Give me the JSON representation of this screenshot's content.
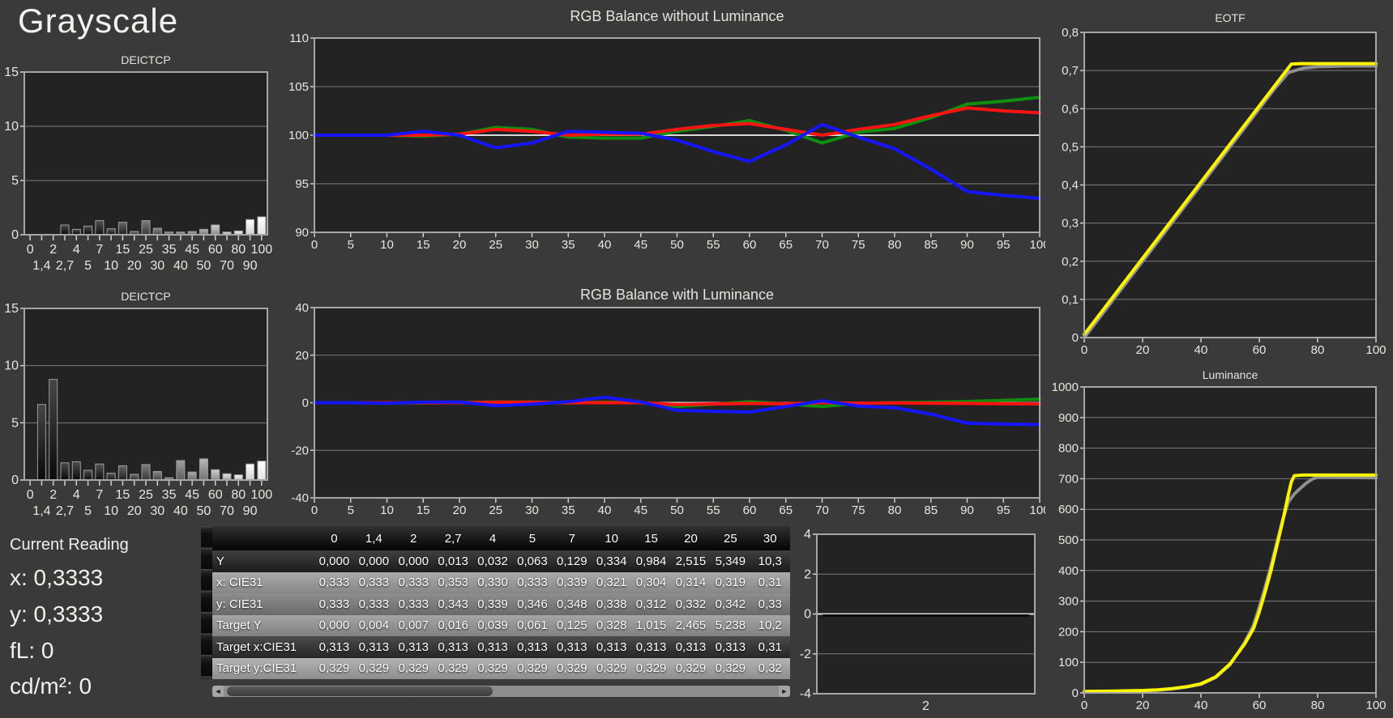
{
  "page": {
    "title": "Grayscale"
  },
  "current_reading": {
    "title": "Current Reading",
    "x": "x: 0,3333",
    "y": "y: 0,3333",
    "fl": "fL: 0",
    "cd": "cd/m²: 0"
  },
  "icons": {
    "scroll_left": "◄",
    "scroll_right": "►"
  },
  "colors": {
    "red": "#fe1212",
    "green": "#0e8f0e",
    "blue": "#1515ff",
    "yellow": "#fdf400",
    "reference_gray": "#8f8f8f",
    "series_black": "#0a0a0a",
    "plot_bg": "#232323",
    "grid": "#7d7d7d",
    "grid_bright": "#d9d9d9",
    "border": "#a6a6a6"
  },
  "table": {
    "col_headers": [
      "0",
      "1,4",
      "2",
      "2,7",
      "4",
      "5",
      "7",
      "10",
      "15",
      "20",
      "25",
      "30"
    ],
    "rows": [
      {
        "label": "Y",
        "values": [
          "0,000",
          "0,000",
          "0,000",
          "0,013",
          "0,032",
          "0,063",
          "0,129",
          "0,334",
          "0,984",
          "2,515",
          "5,349",
          "10,3"
        ]
      },
      {
        "label": "x: CIE31",
        "values": [
          "0,333",
          "0,333",
          "0,333",
          "0,353",
          "0,330",
          "0,333",
          "0,339",
          "0,321",
          "0,304",
          "0,314",
          "0,319",
          "0,31"
        ]
      },
      {
        "label": "y: CIE31",
        "values": [
          "0,333",
          "0,333",
          "0,333",
          "0,343",
          "0,339",
          "0,346",
          "0,348",
          "0,338",
          "0,312",
          "0,332",
          "0,342",
          "0,33"
        ]
      },
      {
        "label": "Target Y",
        "values": [
          "0,000",
          "0,004",
          "0,007",
          "0,016",
          "0,039",
          "0,061",
          "0,125",
          "0,328",
          "1,015",
          "2,465",
          "5,238",
          "10,2"
        ]
      },
      {
        "label": "Target x:CIE31",
        "values": [
          "0,313",
          "0,313",
          "0,313",
          "0,313",
          "0,313",
          "0,313",
          "0,313",
          "0,313",
          "0,313",
          "0,313",
          "0,313",
          "0,31"
        ]
      },
      {
        "label": "Target y:CIE31",
        "values": [
          "0,329",
          "0,329",
          "0,329",
          "0,329",
          "0,329",
          "0,329",
          "0,329",
          "0,329",
          "0,329",
          "0,329",
          "0,329",
          "0,32"
        ]
      }
    ]
  },
  "chart_data": {
    "deictcp_top": {
      "type": "bar",
      "title": "DEICTCP",
      "categories": [
        "0",
        "1,4",
        "2",
        "2,7",
        "4",
        "5",
        "7",
        "10",
        "15",
        "20",
        "25",
        "30",
        "35",
        "40",
        "45",
        "50",
        "60",
        "70",
        "80",
        "90",
        "100"
      ],
      "values": [
        0,
        0,
        0,
        0.9,
        0.5,
        0.8,
        1.3,
        0.55,
        1.15,
        0.3,
        1.3,
        0.6,
        0.25,
        0.25,
        0.3,
        0.5,
        0.9,
        0.25,
        0.35,
        1.4,
        1.65
      ],
      "ylim": [
        0,
        15
      ],
      "y_ticks": [
        "0",
        "5",
        "10",
        "15"
      ]
    },
    "deictcp_bottom": {
      "type": "bar",
      "title": "DEICTCP",
      "categories": [
        "0",
        "1,4",
        "2",
        "2,7",
        "4",
        "5",
        "7",
        "10",
        "15",
        "20",
        "25",
        "30",
        "35",
        "40",
        "45",
        "50",
        "60",
        "70",
        "80",
        "90",
        "100"
      ],
      "values": [
        0,
        6.6,
        8.8,
        1.5,
        1.6,
        0.85,
        1.4,
        0.6,
        1.25,
        0.5,
        1.35,
        0.75,
        0.2,
        1.7,
        0.7,
        1.85,
        0.9,
        0.55,
        0.45,
        1.4,
        1.65
      ],
      "ylim": [
        0,
        15
      ],
      "y_ticks": [
        "0",
        "5",
        "10",
        "15"
      ]
    },
    "rgb_without_luminance": {
      "type": "line",
      "title": "RGB Balance without Luminance",
      "xlim": [
        0,
        100
      ],
      "x": [
        0,
        5,
        10,
        15,
        20,
        25,
        30,
        35,
        40,
        45,
        50,
        55,
        60,
        65,
        70,
        75,
        80,
        85,
        90,
        95,
        100
      ],
      "x_ticks": [
        "0",
        "5",
        "10",
        "15",
        "20",
        "25",
        "30",
        "35",
        "40",
        "45",
        "50",
        "55",
        "60",
        "65",
        "70",
        "75",
        "80",
        "85",
        "90",
        "95",
        "100"
      ],
      "ylim": [
        90,
        110
      ],
      "y_ticks": [
        "90",
        "95",
        "100",
        "105",
        "110"
      ],
      "emphasis_y": 100,
      "series": [
        {
          "name": "green",
          "color_key": "green",
          "values": [
            100,
            100,
            100,
            99.9,
            100.1,
            100.8,
            100.6,
            99.8,
            99.7,
            99.7,
            100.4,
            100.9,
            101.5,
            100.5,
            99.2,
            100.3,
            100.7,
            101.8,
            103.2,
            103.5,
            103.9
          ]
        },
        {
          "name": "red",
          "color_key": "red",
          "values": [
            100,
            100,
            100,
            100,
            100.1,
            100.6,
            100.4,
            100,
            100.1,
            100.1,
            100.6,
            101,
            101.2,
            100.6,
            100,
            100.6,
            101.1,
            102,
            102.8,
            102.5,
            102.3
          ]
        },
        {
          "name": "blue",
          "color_key": "blue",
          "values": [
            100,
            100,
            100,
            100.4,
            100,
            98.7,
            99.2,
            100.4,
            100.3,
            100.2,
            99.5,
            98.3,
            97.3,
            99,
            101.1,
            99.8,
            98.6,
            96.5,
            94.2,
            93.8,
            93.5
          ]
        }
      ]
    },
    "rgb_with_luminance": {
      "type": "line",
      "title": "RGB Balance with Luminance",
      "xlim": [
        0,
        100
      ],
      "x": [
        0,
        5,
        10,
        15,
        20,
        25,
        30,
        35,
        40,
        45,
        50,
        55,
        60,
        65,
        70,
        75,
        80,
        85,
        90,
        95,
        100
      ],
      "x_ticks": [
        "0",
        "5",
        "10",
        "15",
        "20",
        "25",
        "30",
        "35",
        "40",
        "45",
        "50",
        "55",
        "60",
        "65",
        "70",
        "75",
        "80",
        "85",
        "90",
        "95",
        "100"
      ],
      "ylim": [
        -40,
        40
      ],
      "y_ticks": [
        "-40",
        "-20",
        "0",
        "20",
        "40"
      ],
      "emphasis_y": 0,
      "series": [
        {
          "name": "green",
          "color_key": "green",
          "values": [
            0,
            0,
            0,
            -0.1,
            0.1,
            0.3,
            0.3,
            -0.1,
            0.2,
            0,
            -1.6,
            -0.6,
            0.4,
            -0.5,
            -1.6,
            -0.3,
            0,
            0.2,
            0.5,
            1,
            1.5
          ]
        },
        {
          "name": "red",
          "color_key": "red",
          "values": [
            0,
            0,
            0,
            0,
            0,
            0.2,
            0.2,
            0,
            0,
            0,
            -0.8,
            -0.5,
            -0.3,
            -0.4,
            0,
            -0.2,
            -0.1,
            -0.2,
            -0.3,
            -0.4,
            -0.5
          ]
        },
        {
          "name": "blue",
          "color_key": "blue",
          "values": [
            0,
            0,
            -0.2,
            0.2,
            0.3,
            -1.3,
            -0.6,
            0.4,
            2.3,
            0.3,
            -3.2,
            -3.6,
            -3.9,
            -1.6,
            0.8,
            -1.4,
            -2.1,
            -4.8,
            -8.6,
            -9,
            -9.2
          ]
        }
      ]
    },
    "eotf": {
      "type": "line",
      "title": "EOTF",
      "xlim": [
        0,
        100
      ],
      "x_ticks": [
        "0",
        "20",
        "40",
        "60",
        "80",
        "100"
      ],
      "ylim": [
        0,
        0.8
      ],
      "y_ticks": [
        "0",
        "0,1",
        "0,2",
        "0,3",
        "0,4",
        "0,5",
        "0,6",
        "0,7",
        "0,8"
      ],
      "series": [
        {
          "name": "reference",
          "color_key": "reference_gray",
          "x": [
            0,
            2,
            10,
            20,
            30,
            40,
            50,
            60,
            65,
            70,
            75,
            80,
            90,
            100
          ],
          "y": [
            0,
            0.02,
            0.1,
            0.2,
            0.3,
            0.4,
            0.5,
            0.6,
            0.65,
            0.695,
            0.706,
            0.71,
            0.712,
            0.712
          ]
        },
        {
          "name": "measured",
          "color_key": "yellow",
          "x": [
            0,
            71,
            74,
            100
          ],
          "y": [
            0.008,
            0.717,
            0.718,
            0.718
          ]
        }
      ]
    },
    "luminance": {
      "type": "line",
      "title": "Luminance",
      "xlim": [
        0,
        100
      ],
      "x_ticks": [
        "0",
        "20",
        "40",
        "60",
        "80",
        "100"
      ],
      "ylim": [
        0,
        1000
      ],
      "y_ticks": [
        "0",
        "100",
        "200",
        "300",
        "400",
        "500",
        "600",
        "700",
        "800",
        "900",
        "1000"
      ],
      "series": [
        {
          "name": "reference",
          "color_key": "reference_gray",
          "x": [
            0,
            10,
            20,
            25,
            30,
            35,
            40,
            45,
            50,
            55,
            58,
            60,
            62,
            64,
            66,
            68,
            70,
            72,
            74,
            76,
            78,
            80,
            85,
            100
          ],
          "y": [
            4,
            5,
            7,
            9,
            13,
            19,
            28,
            50,
            92,
            165,
            220,
            280,
            345,
            415,
            490,
            565,
            625,
            650,
            668,
            685,
            698,
            706,
            705,
            703
          ]
        },
        {
          "name": "measured",
          "color_key": "yellow",
          "x": [
            0,
            10,
            20,
            25,
            30,
            35,
            40,
            45,
            50,
            55,
            58,
            60,
            62,
            64,
            66,
            68,
            70,
            71,
            72,
            75,
            100
          ],
          "y": [
            5,
            6,
            8,
            10,
            14,
            20,
            30,
            52,
            95,
            160,
            210,
            265,
            330,
            400,
            480,
            560,
            650,
            690,
            710,
            712,
            712
          ]
        }
      ]
    },
    "delta_mini": {
      "type": "line",
      "title": "",
      "xlim": [
        0,
        100
      ],
      "x_ticks": [
        "2"
      ],
      "x_ticks_centered": true,
      "ylim": [
        -4,
        4
      ],
      "y_ticks": [
        "-4",
        "-2",
        "0",
        "2",
        "4"
      ],
      "emphasis_y": 0,
      "series": [
        {
          "name": "measurement",
          "color_key": "series_black",
          "x": [
            3,
            97
          ],
          "y": [
            -0.08,
            -0.08
          ]
        }
      ]
    }
  }
}
